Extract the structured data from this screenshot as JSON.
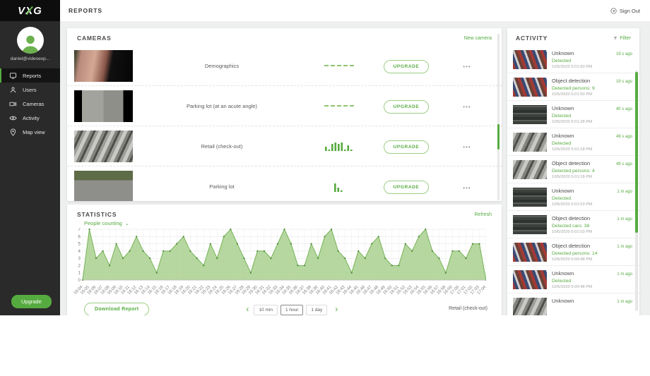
{
  "brand": {
    "logo_text": "VXG",
    "accent_color": "#56ab40"
  },
  "topbar": {
    "title": "REPORTS",
    "signout_label": "Sign Out"
  },
  "sidebar": {
    "email": "daniel@videoexp...",
    "items": [
      {
        "label": "Reports",
        "icon": "reports-icon",
        "active": true
      },
      {
        "label": "Users",
        "icon": "user-icon",
        "active": false
      },
      {
        "label": "Cameras",
        "icon": "camera-icon",
        "active": false
      },
      {
        "label": "Activity",
        "icon": "eye-icon",
        "active": false
      },
      {
        "label": "Map view",
        "icon": "map-pin-icon",
        "active": false
      }
    ],
    "upgrade_label": "Upgrade"
  },
  "cameras": {
    "title": "CAMERAS",
    "new_camera_label": "New camera",
    "upgrade_label": "UPGRADE",
    "more_icon": "•••",
    "rows": [
      {
        "name": "Demographics",
        "thumb": "th-face",
        "spark_type": "dashed",
        "bars": []
      },
      {
        "name": "Parking lot (at an acute angle)",
        "thumb": "th-lot-angle",
        "spark_type": "dashed",
        "bars": []
      },
      {
        "name": "Retail (check-out)",
        "thumb": "th-checkout",
        "spark_type": "bars",
        "bars": [
          3,
          1,
          5,
          6,
          5,
          6,
          1,
          4,
          1
        ]
      },
      {
        "name": "Parking lot",
        "thumb": "th-lot-green",
        "spark_type": "bars",
        "bars": [
          6,
          3,
          1
        ]
      }
    ]
  },
  "statistics": {
    "title": "STATISTICS",
    "refresh_label": "Refresh",
    "metric_selected": "People counting",
    "dropdown_chevron": "⌄",
    "download_label": "Download Report",
    "prev_icon": "‹",
    "next_icon": "›",
    "ranges": [
      "10 min",
      "1 hour",
      "1 day"
    ],
    "range_selected": "1 hour",
    "camera_label": "Retail (check-out)"
  },
  "chart_data": {
    "type": "area",
    "title": "People counting",
    "series_camera": "Retail (check-out)",
    "xlabel": "",
    "ylabel": "",
    "ylim": [
      0,
      7
    ],
    "grid": true,
    "x": [
      "16:04",
      "16:05",
      "16:06",
      "16:07",
      "16:08",
      "16:09",
      "16:10",
      "16:11",
      "16:12",
      "16:13",
      "16:14",
      "16:15",
      "16:16",
      "16:17",
      "16:18",
      "16:19",
      "16:20",
      "16:21",
      "16:22",
      "16:23",
      "16:24",
      "16:25",
      "16:26",
      "16:27",
      "16:28",
      "16:29",
      "16:30",
      "16:31",
      "16:32",
      "16:33",
      "16:34",
      "16:35",
      "16:36",
      "16:37",
      "16:38",
      "16:39",
      "16:40",
      "16:41",
      "16:42",
      "16:43",
      "16:44",
      "16:45",
      "16:46",
      "16:47",
      "16:48",
      "16:49",
      "16:50",
      "16:51",
      "16:52",
      "16:53",
      "16:54",
      "16:55",
      "16:56",
      "16:57",
      "16:58",
      "16:59",
      "17:00",
      "17:01",
      "17:02",
      "17:03",
      "17:04"
    ],
    "values": [
      0,
      7,
      3,
      4,
      2,
      5,
      3,
      4,
      6,
      4,
      3,
      1,
      4,
      4,
      5,
      6,
      4,
      3,
      2,
      5,
      3,
      6,
      7,
      5,
      3,
      1,
      4,
      4,
      3,
      5,
      7,
      5,
      2,
      2,
      5,
      3,
      6,
      7,
      4,
      3,
      1,
      4,
      3,
      5,
      6,
      3,
      2,
      2,
      5,
      4,
      6,
      7,
      4,
      3,
      1,
      4,
      4,
      3,
      5,
      5,
      0
    ]
  },
  "activity": {
    "title": "ACTIVITY",
    "filter_label": "Filter",
    "items": [
      {
        "thumb": "th-shelf",
        "title": "Unknown",
        "detail": "Detected",
        "time": "10/5/2020 5:01:50 PM",
        "ago": "19 s ago"
      },
      {
        "thumb": "th-shelf",
        "title": "Object detection",
        "detail": "Detected persons: 9",
        "time": "10/5/2020 5:01:50 PM",
        "ago": "19 s ago"
      },
      {
        "thumb": "th-lot-dark",
        "title": "Unknown",
        "detail": "Detected",
        "time": "10/5/2020 5:01:28 PM",
        "ago": "40 s ago"
      },
      {
        "thumb": "th-checkout",
        "title": "Unknown",
        "detail": "Detected",
        "time": "10/5/2020 5:01:18 PM",
        "ago": "49 s ago"
      },
      {
        "thumb": "th-checkout",
        "title": "Object detection",
        "detail": "Detected persons: 4",
        "time": "10/5/2020 5:01:18 PM",
        "ago": "49 s ago"
      },
      {
        "thumb": "th-lot-dark",
        "title": "Unknown",
        "detail": "Detected",
        "time": "10/5/2020 5:01:03 PM",
        "ago": "1 m ago"
      },
      {
        "thumb": "th-lot-dark",
        "title": "Object detection",
        "detail": "Detected cars: 38",
        "time": "10/5/2020 5:01:03 PM",
        "ago": "1 m ago"
      },
      {
        "thumb": "th-shelf",
        "title": "Object detection",
        "detail": "Detected persons: 14",
        "time": "10/5/2020 5:00:48 PM",
        "ago": "1 m ago"
      },
      {
        "thumb": "th-shelf",
        "title": "Unknown",
        "detail": "Detected",
        "time": "10/5/2020 5:00:48 PM",
        "ago": "1 m ago"
      },
      {
        "thumb": "th-checkout",
        "title": "Unknown",
        "detail": "",
        "time": "",
        "ago": "1 m ago"
      }
    ]
  }
}
